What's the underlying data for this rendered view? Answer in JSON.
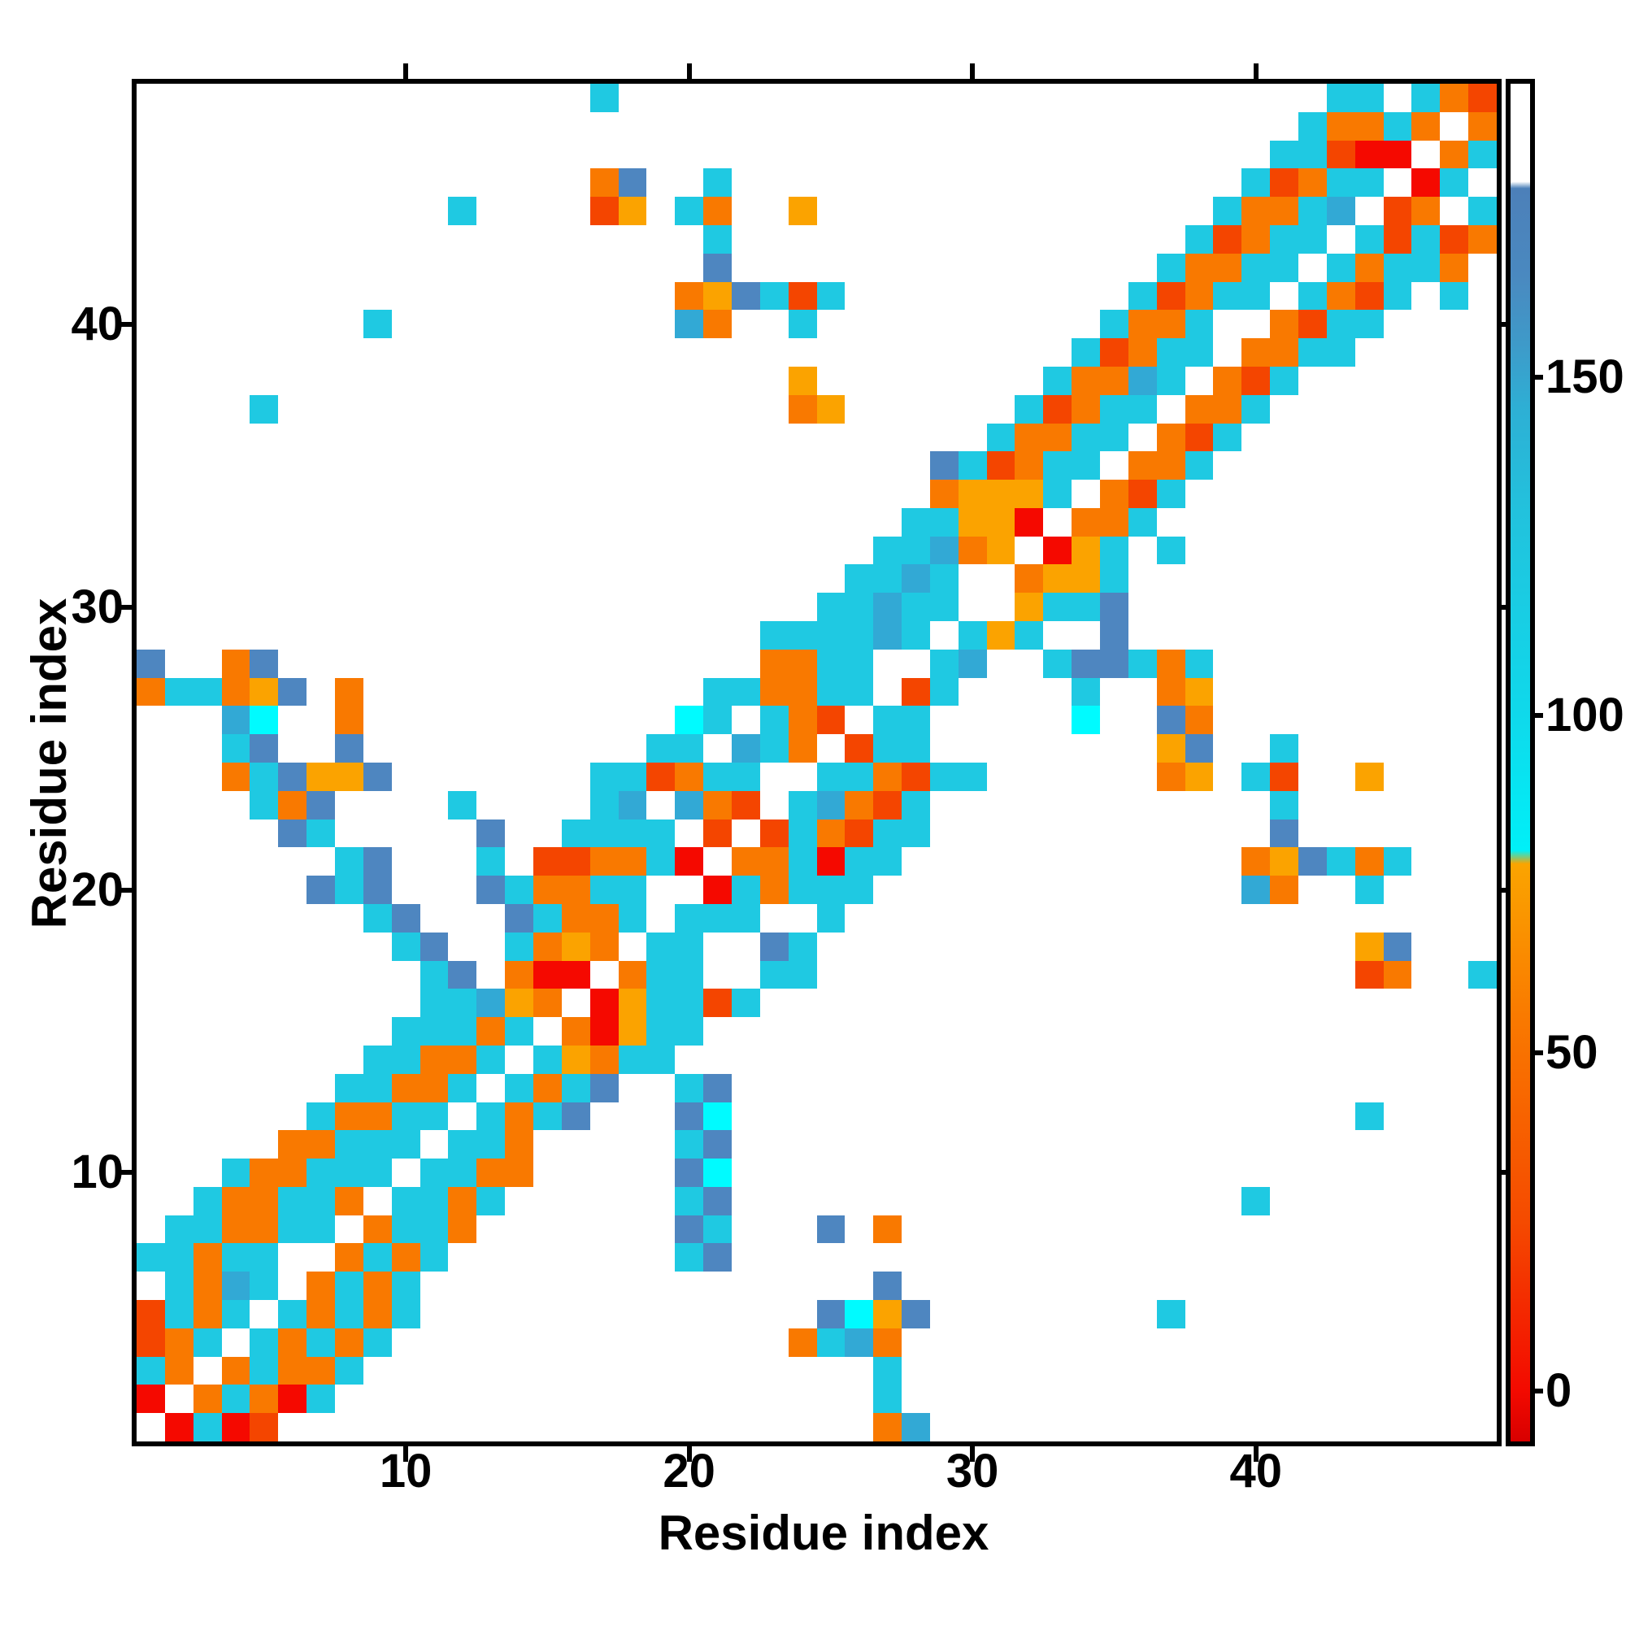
{
  "figure": {
    "background": "#FFFFFF",
    "axes": {
      "x_label": "Residue index",
      "y_label": "Residue index",
      "x_ticks": [
        10,
        20,
        30,
        40
      ],
      "y_ticks": [
        10,
        20,
        30,
        40
      ]
    },
    "colorbar": {
      "ticks": [
        0,
        50,
        100,
        150
      ],
      "value_min": -7.5,
      "value_max": 193.5,
      "gradient_stops": [
        [
          -7.5,
          "#D80000"
        ],
        [
          0,
          "#F30A00"
        ],
        [
          25,
          "#F54A00"
        ],
        [
          55,
          "#F97900"
        ],
        [
          78,
          "#FBA400"
        ],
        [
          80,
          "#00F0F8"
        ],
        [
          100,
          "#0FD9EB"
        ],
        [
          130,
          "#22C2DD"
        ],
        [
          145,
          "#2DB0D5"
        ],
        [
          155,
          "#3E9AC9"
        ],
        [
          165,
          "#4A89C0"
        ],
        [
          178,
          "#4C80B9"
        ],
        [
          179,
          "#FFFFFF"
        ],
        [
          193.5,
          "#FFFFFF"
        ]
      ]
    }
  },
  "chart_data": {
    "type": "heatmap",
    "title": "",
    "xlabel": "Residue index",
    "ylabel": "Residue index",
    "n_residues": 48,
    "x_range": [
      1,
      48
    ],
    "y_range": [
      1,
      48
    ],
    "legend": "residue-residue contact map; cell color encodes value on colorbar scale 0-190 (red/orange = low, cyan/blue = high, white = none)",
    "palette": {
      ".": {
        "name": "no-contact",
        "color": "#FFFFFF",
        "value": null
      },
      "R": {
        "name": "red",
        "color": "#F50900",
        "value": 5
      },
      "Q": {
        "name": "red-orange",
        "color": "#F44500",
        "value": 30
      },
      "O": {
        "name": "orange",
        "color": "#F97900",
        "value": 55
      },
      "A": {
        "name": "amber",
        "color": "#FBA300",
        "value": 72
      },
      "Y": {
        "name": "bright-cyan",
        "color": "#00FBFF",
        "value": 95
      },
      "C": {
        "name": "cyan",
        "color": "#1FC9E2",
        "value": 115
      },
      "T": {
        "name": "teal-blue",
        "color": "#32A9D5",
        "value": 145
      },
      "B": {
        "name": "steel-blue",
        "color": "#4E86C0",
        "value": 165
      }
    },
    "matrix_rows_y48_to_y1": [
      "................C.........................CC.COQ",
      ".........................................COOCO.O",
      "........................................CCQRR.OC",
      "................OB..C..................CQOCC.RC.",
      "...........C....QA.CO..A..............COOCT.QO.C",
      "....................C................CQOCC.CQCQO",
      "....................B...............COOCC.COCCO.",
      "...................OABCQC..........CQOCC.COQC.C.",
      "........C..........TO..C..........COOC..OQCC....",
      ".................................CQOCC.OOCC.....",
      ".......................A........COOTC.OQC.......",
      "....C..................OA......CQOCC.OOC........",
      "..............................COOCC.OQC.........",
      "............................BCQOCC.OOC..........",
      "............................OAAAC.OQC...........",
      "...........................CCAAR.OOC............",
      "..........................CCTOA.RAC.C...........",
      ".........................CCTC..OAAC.............",
      "........................CCTCC..ACCB.............",
      "......................CCCCTC.CAC..B.............",
      "B..OB.................OOCC..CT..CBBCOC..........",
      "OCCOAB.O............CCOOCC.QC....C..OA..........",
      "...TY..O...........YC.COQ.CC.....Y..BO..........",
      "...CB..B..........CC.TCO.QCC........AB..C.......",
      "...OCBAAB.......CCQOCC..CCOQCC......OA.CQ..A....",
      "....COB....C....CT.TOQ.CTOQC............C.......",
      ".....BC.....B..CCCC.Q.QCOQCC............B.......",
      ".......CB...C.QQOOCR.OOCRCC............OABCOC...",
      "......BCB...BCOOCC..RCOCCC.............TO..C....",
      "........CB...BCOOC.CCC..C.......................",
      ".........CB..COAO.CC..BC...................AB...",
      "..........CB.ORR.OCC..CC...................QO..C",
      "..........CCTAO.RACCQC..........................",
      ".........CCCOC.ORACC............................",
      "........CCOOC.CAOCC.............................",
      ".......CCOOC.COCB..CB...........................",
      "......COOCC.COCB...BY......................C....",
      ".....OOCCC.CCO.....CB...........................",
      "...COOCCC.CCOO.....BY...........................",
      "..COOCCO.CCOC......CB..................C........",
      ".CCOOCC.OCCO.......BC...B.O.....................",
      "CCOCC..OCOC........CB...........................",
      ".COTC.OCOC................B.....................",
      "QCOC.COCOC..............BYAB........C...........",
      "QOC.COCOC..............OCTO.....................",
      "CO.OCOOC..................C.....................",
      "R.OCORC...................C.....................",
      ".RCRQ.....................OT...................."
    ]
  }
}
